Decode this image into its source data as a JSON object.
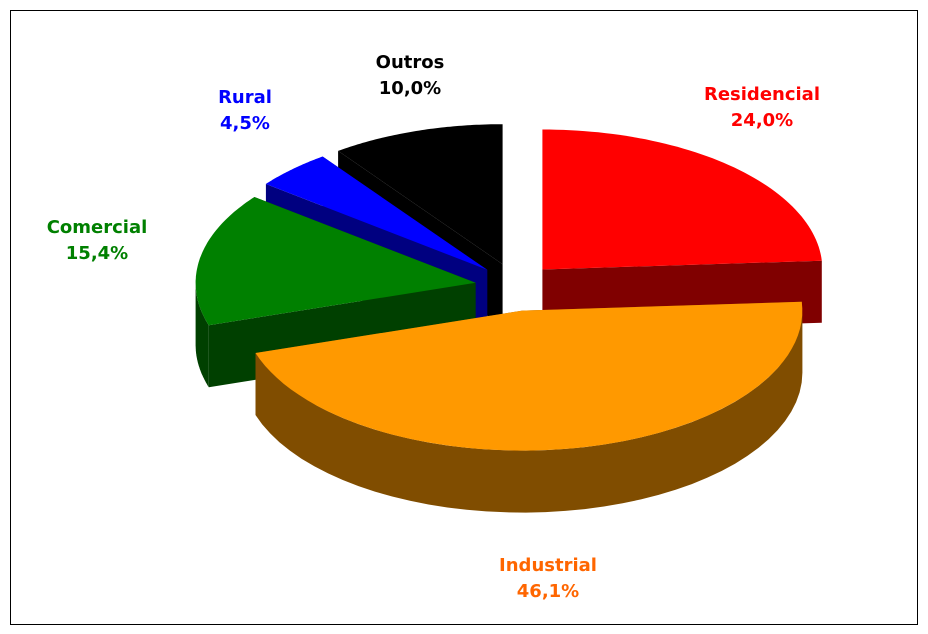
{
  "chart_data": {
    "type": "pie",
    "categories": [
      "Residencial",
      "Industrial",
      "Comercial",
      "Rural",
      "Outros"
    ],
    "values": [
      24.0,
      46.1,
      15.4,
      4.5,
      10.0
    ],
    "value_labels": [
      "24,0%",
      "46,1%",
      "15,4%",
      "4,5%",
      "10,0%"
    ],
    "colors": [
      "#ff0000",
      "#ff9900",
      "#008000",
      "#0000ff",
      "#000000"
    ],
    "label_colors": [
      "#ff0000",
      "#ff6600",
      "#008000",
      "#0000ff",
      "#000000"
    ],
    "three_d": true,
    "exploded": true
  }
}
